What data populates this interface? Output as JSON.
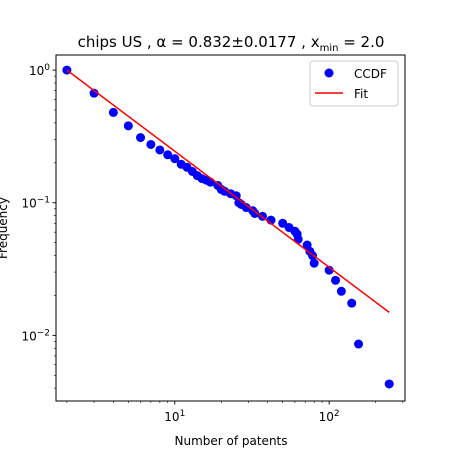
{
  "chart_data": {
    "type": "scatter",
    "title": "chips US , α = 0.832±0.0177 , x",
    "title_sub": "min",
    "title_end": " = 2.0",
    "xlabel": "Number of patents",
    "ylabel": "Frequency",
    "xscale": "log",
    "yscale": "log",
    "xlim": [
      1.7,
      310
    ],
    "ylim": [
      0.0032,
      1.3
    ],
    "x_tick_labels": [
      {
        "value": 10,
        "base": "10",
        "exp": "1"
      },
      {
        "value": 100,
        "base": "10",
        "exp": "2"
      }
    ],
    "y_tick_labels": [
      {
        "value": 0.01,
        "base": "10",
        "exp": "−2"
      },
      {
        "value": 0.1,
        "base": "10",
        "exp": "−1"
      },
      {
        "value": 1,
        "base": "10",
        "exp": "0"
      }
    ],
    "legend_position": "top-right",
    "grid": false,
    "series": [
      {
        "name": "CCDF",
        "kind": "markers",
        "color": "#0000ff",
        "points": [
          [
            2,
            1.0
          ],
          [
            3,
            0.67
          ],
          [
            4,
            0.48
          ],
          [
            5,
            0.38
          ],
          [
            6,
            0.31
          ],
          [
            7,
            0.275
          ],
          [
            8,
            0.25
          ],
          [
            9,
            0.23
          ],
          [
            10,
            0.215
          ],
          [
            11,
            0.195
          ],
          [
            12,
            0.185
          ],
          [
            13,
            0.172
          ],
          [
            14,
            0.16
          ],
          [
            15,
            0.152
          ],
          [
            16,
            0.148
          ],
          [
            17,
            0.143
          ],
          [
            19,
            0.135
          ],
          [
            20,
            0.126
          ],
          [
            21,
            0.122
          ],
          [
            23,
            0.117
          ],
          [
            25,
            0.113
          ],
          [
            26,
            0.1
          ],
          [
            27,
            0.097
          ],
          [
            29,
            0.092
          ],
          [
            32,
            0.087
          ],
          [
            33,
            0.083
          ],
          [
            37,
            0.079
          ],
          [
            42,
            0.074
          ],
          [
            50,
            0.07
          ],
          [
            55,
            0.065
          ],
          [
            60,
            0.061
          ],
          [
            62,
            0.058
          ],
          [
            63,
            0.053
          ],
          [
            72,
            0.048
          ],
          [
            75,
            0.043
          ],
          [
            78,
            0.04
          ],
          [
            80,
            0.035
          ],
          [
            100,
            0.031
          ],
          [
            110,
            0.026
          ],
          [
            120,
            0.0215
          ],
          [
            140,
            0.0175
          ],
          [
            155,
            0.0086
          ],
          [
            245,
            0.0043
          ]
        ]
      },
      {
        "name": "Fit",
        "kind": "line",
        "color": "#ff0000",
        "points": [
          [
            2,
            1.0
          ],
          [
            245,
            0.0149
          ]
        ]
      }
    ]
  }
}
